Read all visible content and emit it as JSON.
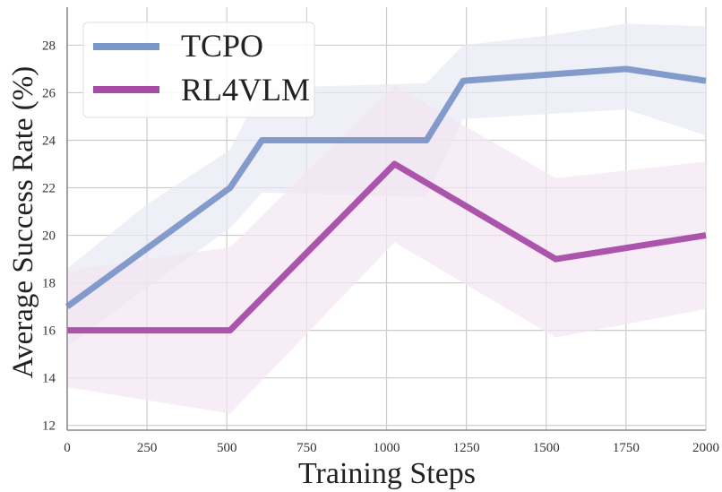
{
  "chart_data": {
    "type": "line",
    "title": "",
    "xlabel": "Training Steps",
    "ylabel": "Average Success Rate (%)",
    "xlim": [
      0,
      2000
    ],
    "ylim": [
      11.8,
      29.6
    ],
    "x_ticks": [
      0,
      250,
      500,
      750,
      1000,
      1250,
      1500,
      1750,
      2000
    ],
    "y_ticks": [
      12,
      14,
      16,
      18,
      20,
      22,
      24,
      26,
      28
    ],
    "grid": true,
    "legend_position": "top-left",
    "series": [
      {
        "name": "TCPO",
        "color": "#7b96c8",
        "band_color": "#e7e8f3",
        "x": [
          0,
          510,
          610,
          1125,
          1240,
          1750,
          2000
        ],
        "y": [
          17,
          22,
          24,
          24,
          26.5,
          27,
          26.5
        ],
        "band_x": [
          0,
          250,
          510,
          610,
          1125,
          1240,
          1500,
          1750,
          2000
        ],
        "band_upper": [
          18.6,
          21.3,
          23.6,
          26.2,
          26.4,
          28.0,
          28.4,
          28.9,
          28.8
        ],
        "band_lower": [
          15.3,
          17.8,
          20.3,
          21.8,
          21.6,
          24.9,
          25.1,
          25.3,
          24.2
        ]
      },
      {
        "name": "RL4VLM",
        "color": "#a64ca6",
        "band_color": "#f3e6f2",
        "x": [
          0,
          510,
          1025,
          1530,
          2000
        ],
        "y": [
          16,
          16,
          23,
          19,
          20
        ],
        "band_x": [
          0,
          510,
          1025,
          1530,
          2000
        ],
        "band_upper": [
          18.5,
          19.5,
          26.3,
          22.4,
          23.1
        ],
        "band_lower": [
          13.6,
          12.5,
          19.7,
          15.7,
          16.9
        ]
      }
    ]
  }
}
